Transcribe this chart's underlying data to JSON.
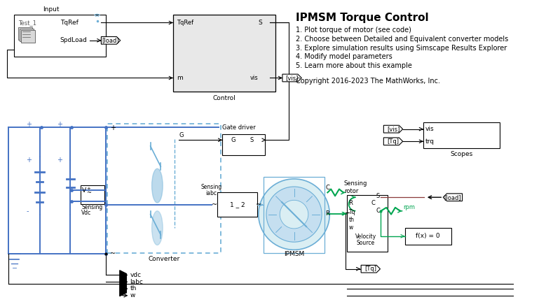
{
  "title": "IPMSM Torque Control",
  "bg_color": "#ffffff",
  "bullet_points": [
    "1. Plot torque of motor (see code)",
    "2. Choose between Detailed and Equivalent converter models",
    "3. Explore simulation results using Simscape Results Explorer",
    "4. Modify model parameters",
    "5. Learn more about this example"
  ],
  "copyright": "Copyright 2016-2023 The MathWorks, Inc.",
  "blue": "#4472c4",
  "lblue": "#6baed6",
  "green": "#00a550",
  "black": "#000000",
  "lgray": "#d9d9d9",
  "dgray": "#595959",
  "red_brown": "#8B3A3A",
  "control_gray": "#e8e8e8"
}
